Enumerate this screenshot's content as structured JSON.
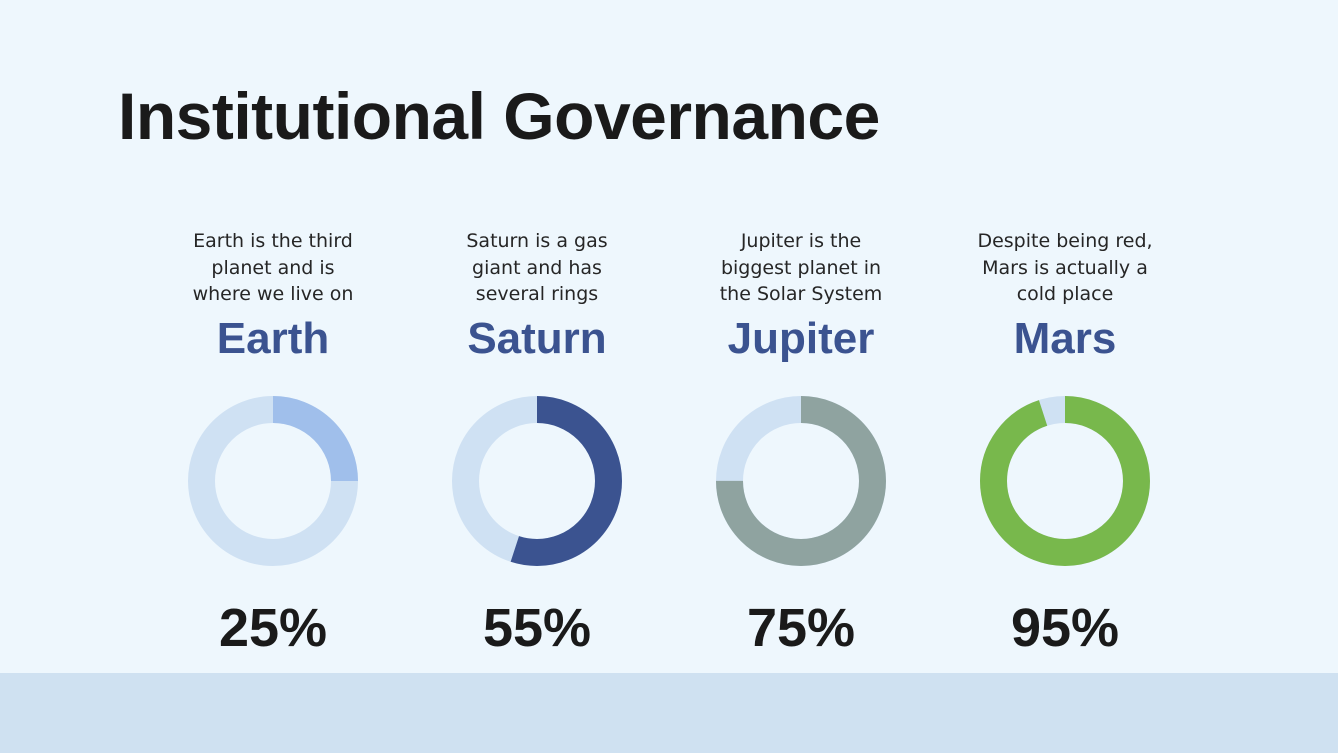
{
  "slide": {
    "title": "Institutional Governance",
    "background_color": "#eef7fd",
    "footer_color": "#cfe1f1"
  },
  "items": [
    {
      "name": "Earth",
      "description": "Earth is the third\nplanet and is\nwhere we live on",
      "percent_label": "25%",
      "value": 25,
      "color": "#a0bfeb",
      "track_color": "#cfe1f3"
    },
    {
      "name": "Saturn",
      "description": "Saturn is a gas\ngiant and has\nseveral rings",
      "percent_label": "55%",
      "value": 55,
      "color": "#3b5390",
      "track_color": "#cfe1f3"
    },
    {
      "name": "Jupiter",
      "description": "Jupiter is the\nbiggest planet in\nthe Solar System",
      "percent_label": "75%",
      "value": 75,
      "color": "#8fa3a0",
      "track_color": "#cfe1f3"
    },
    {
      "name": "Mars",
      "description": "Despite being red,\nMars is actually a\ncold place",
      "percent_label": "95%",
      "value": 95,
      "color": "#78b84c",
      "track_color": "#cfe1f3"
    }
  ],
  "chart_data": {
    "type": "pie",
    "subtype": "donut",
    "title": "Institutional Governance",
    "categories": [
      "Earth",
      "Saturn",
      "Jupiter",
      "Mars"
    ],
    "values": [
      25,
      55,
      75,
      95
    ],
    "unit": "%",
    "colors": [
      "#a0bfeb",
      "#3b5390",
      "#8fa3a0",
      "#78b84c"
    ],
    "remainder_color": "#cfe1f3",
    "descriptions": [
      "Earth is the third planet and is where we live on",
      "Saturn is a gas giant and has several rings",
      "Jupiter is the biggest planet in the Solar System",
      "Despite being red, Mars is actually a cold place"
    ],
    "legend": "none",
    "grid": false
  }
}
